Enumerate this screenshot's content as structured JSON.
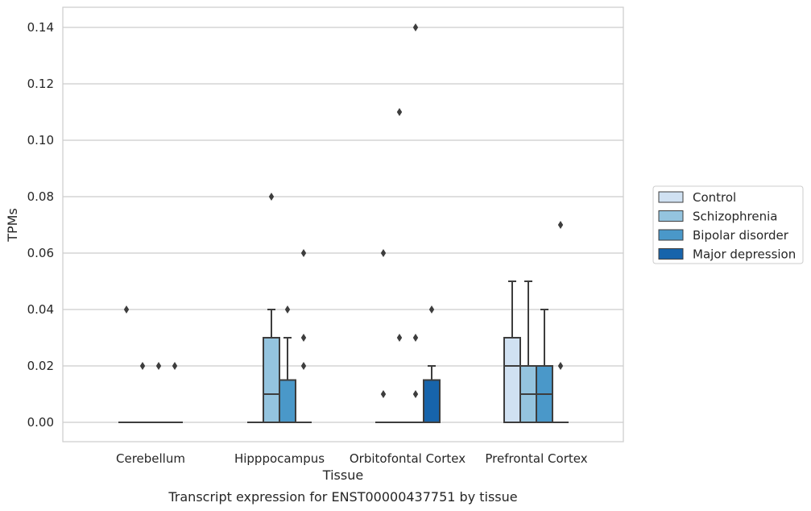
{
  "chart_data": {
    "type": "box",
    "title": "Transcript expression for ENST00000437751 by tissue",
    "xlabel": "Tissue",
    "ylabel": "TPMs",
    "ylim": [
      -0.0068,
      0.147
    ],
    "yticks": [
      "0.00",
      "0.02",
      "0.04",
      "0.06",
      "0.08",
      "0.10",
      "0.12",
      "0.14"
    ],
    "grid": "horizontal",
    "legend_position": "right",
    "categories": [
      "Cerebellum",
      "Hipppocampus",
      "Orbitofontal Cortex",
      "Prefrontal Cortex"
    ],
    "series": [
      {
        "name": "Control",
        "color": "#d0e1f2",
        "boxes": [
          {
            "q1": 0,
            "median": 0,
            "q3": 0,
            "whislo": 0,
            "whishi": 0,
            "fliers": [
              0.04
            ]
          },
          {
            "q1": 0,
            "median": 0,
            "q3": 0,
            "whislo": 0,
            "whishi": 0,
            "fliers": []
          },
          {
            "q1": 0,
            "median": 0,
            "q3": 0,
            "whislo": 0,
            "whishi": 0,
            "fliers": [
              0.06,
              0.01
            ]
          },
          {
            "q1": 0,
            "median": 0.02,
            "q3": 0.03,
            "whislo": 0,
            "whishi": 0.05,
            "fliers": []
          }
        ]
      },
      {
        "name": "Schizophrenia",
        "color": "#94c4df",
        "boxes": [
          {
            "q1": 0,
            "median": 0,
            "q3": 0,
            "whislo": 0,
            "whishi": 0,
            "fliers": [
              0.02
            ]
          },
          {
            "q1": 0,
            "median": 0.01,
            "q3": 0.03,
            "whislo": 0,
            "whishi": 0.04,
            "fliers": [
              0.08
            ]
          },
          {
            "q1": 0,
            "median": 0,
            "q3": 0,
            "whislo": 0,
            "whishi": 0,
            "fliers": [
              0.11,
              0.03
            ]
          },
          {
            "q1": 0,
            "median": 0.01,
            "q3": 0.02,
            "whislo": 0,
            "whishi": 0.05,
            "fliers": []
          }
        ]
      },
      {
        "name": "Bipolar disorder",
        "color": "#4a98c9",
        "boxes": [
          {
            "q1": 0,
            "median": 0,
            "q3": 0,
            "whislo": 0,
            "whishi": 0,
            "fliers": [
              0.02
            ]
          },
          {
            "q1": 0,
            "median": 0,
            "q3": 0.015,
            "whislo": 0,
            "whishi": 0.03,
            "fliers": [
              0.04
            ]
          },
          {
            "q1": 0,
            "median": 0,
            "q3": 0,
            "whislo": 0,
            "whishi": 0,
            "fliers": [
              0.14,
              0.03,
              0.01
            ]
          },
          {
            "q1": 0,
            "median": 0.01,
            "q3": 0.02,
            "whislo": 0,
            "whishi": 0.04,
            "fliers": []
          }
        ]
      },
      {
        "name": "Major depression",
        "color": "#1764ab",
        "boxes": [
          {
            "q1": 0,
            "median": 0,
            "q3": 0,
            "whislo": 0,
            "whishi": 0,
            "fliers": [
              0.02
            ]
          },
          {
            "q1": 0,
            "median": 0,
            "q3": 0,
            "whislo": 0,
            "whishi": 0,
            "fliers": [
              0.06,
              0.03,
              0.02
            ]
          },
          {
            "q1": 0,
            "median": 0,
            "q3": 0.015,
            "whislo": 0,
            "whishi": 0.02,
            "fliers": [
              0.04
            ]
          },
          {
            "q1": 0,
            "median": 0,
            "q3": 0,
            "whislo": 0,
            "whishi": 0,
            "fliers": [
              0.07,
              0.02
            ]
          }
        ]
      }
    ]
  }
}
